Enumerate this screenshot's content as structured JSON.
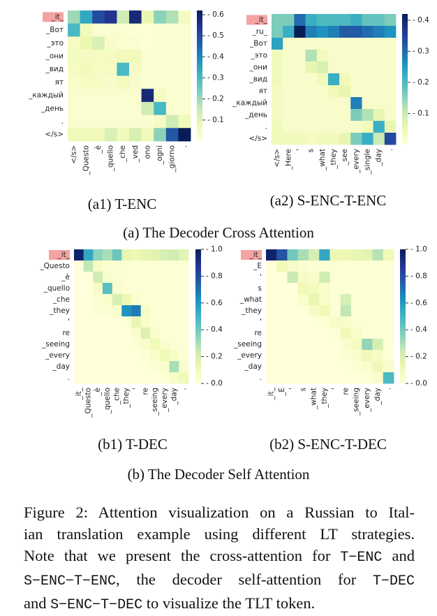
{
  "colors": {
    "cmap": [
      "#ffffd9",
      "#edf8b1",
      "#c7e9b4",
      "#7fcdbb",
      "#41b6c4",
      "#1d91c0",
      "#225ea8",
      "#253494",
      "#081d58"
    ],
    "tlt_highlight": "#f4a3a3"
  },
  "subfigures": {
    "a1": "(a1) T-ENC",
    "a2": "(a2) S-ENC-T-ENC",
    "b1": "(b1) T-DEC",
    "b2": "(b2) S-ENC-T-DEC"
  },
  "groups": {
    "a": "(a) The Decoder Cross Attention",
    "b": "(b) The Decoder Self Attention"
  },
  "caption": {
    "l1": "Figure 2: Attention visualization on a Russian to Ital-",
    "l2": "ian translation example using different LT strategies.",
    "l3a": "Note that we present the cross-attention for ",
    "l3b": "T−ENC",
    "l3c": " and",
    "l4a": "S−ENC−T−ENC",
    "l4b": ", the decoder self-attention for ",
    "l4c": "T−DEC",
    "l5a": "and ",
    "l5b": "S−ENC−T−DEC",
    "l5c": " to visualize the TLT token."
  },
  "chart_data": [
    {
      "id": "a1",
      "type": "heatmap",
      "y_labels": [
        "_it_",
        "_Вот",
        "_это",
        "_они",
        "_вид",
        "ят",
        "_каждый",
        "_день",
        ".",
        "</s>"
      ],
      "x_labels": [
        "</s>",
        "_Questo",
        "_è",
        "_quello",
        "_che",
        "_ved",
        "ono",
        "_ogni",
        "_giorno",
        "."
      ],
      "colorbar_ticks": [
        0.1,
        0.2,
        0.3,
        0.4,
        0.5,
        0.6
      ],
      "vmin": 0,
      "vmax": 0.62,
      "values": [
        [
          0.2,
          0.34,
          0.5,
          0.55,
          0.14,
          0.58,
          0.08,
          0.22,
          0.18,
          0.04
        ],
        [
          0.3,
          0.06,
          0.02,
          0.02,
          0.02,
          0.01,
          0.01,
          0.02,
          0.02,
          0.02
        ],
        [
          0.04,
          0.08,
          0.12,
          0.03,
          0.02,
          0.02,
          0.01,
          0.02,
          0.02,
          0.02
        ],
        [
          0.05,
          0.04,
          0.04,
          0.04,
          0.06,
          0.06,
          0.02,
          0.02,
          0.02,
          0.02
        ],
        [
          0.04,
          0.06,
          0.04,
          0.04,
          0.3,
          0.04,
          0.02,
          0.02,
          0.02,
          0.02
        ],
        [
          0.03,
          0.04,
          0.04,
          0.03,
          0.05,
          0.03,
          0.02,
          0.02,
          0.02,
          0.02
        ],
        [
          0.02,
          0.02,
          0.02,
          0.02,
          0.02,
          0.02,
          0.58,
          0.04,
          0.02,
          0.02
        ],
        [
          0.02,
          0.02,
          0.02,
          0.02,
          0.02,
          0.02,
          0.14,
          0.3,
          0.02,
          0.02
        ],
        [
          0.02,
          0.02,
          0.02,
          0.02,
          0.02,
          0.02,
          0.02,
          0.04,
          0.14,
          0.06
        ],
        [
          0.06,
          0.06,
          0.06,
          0.12,
          0.06,
          0.12,
          0.06,
          0.22,
          0.48,
          0.62
        ]
      ]
    },
    {
      "id": "a2",
      "type": "heatmap",
      "y_labels": [
        "_it_",
        "_ru_",
        "_Вот",
        "_это",
        "_они",
        "_вид",
        "ят",
        "_каждый",
        "_день",
        ".",
        "</s>"
      ],
      "x_labels": [
        "</s>",
        "_Here",
        "'",
        "s",
        "_what",
        "_they",
        "_see",
        "_every",
        "_single",
        "_day",
        "."
      ],
      "colorbar_ticks": [
        0.1,
        0.2,
        0.3,
        0.4
      ],
      "vmin": 0,
      "vmax": 0.42,
      "values": [
        [
          0.16,
          0.16,
          0.3,
          0.22,
          0.2,
          0.2,
          0.2,
          0.22,
          0.18,
          0.18,
          0.16
        ],
        [
          0.16,
          0.22,
          0.42,
          0.28,
          0.26,
          0.28,
          0.32,
          0.32,
          0.3,
          0.28,
          0.26
        ],
        [
          0.24,
          0.02,
          0.02,
          0.02,
          0.02,
          0.02,
          0.02,
          0.02,
          0.02,
          0.02,
          0.02
        ],
        [
          0.04,
          0.02,
          0.02,
          0.12,
          0.04,
          0.02,
          0.02,
          0.02,
          0.02,
          0.02,
          0.02
        ],
        [
          0.04,
          0.02,
          0.02,
          0.06,
          0.08,
          0.02,
          0.02,
          0.02,
          0.02,
          0.02,
          0.02
        ],
        [
          0.04,
          0.02,
          0.02,
          0.02,
          0.04,
          0.22,
          0.04,
          0.02,
          0.02,
          0.02,
          0.02
        ],
        [
          0.03,
          0.02,
          0.02,
          0.02,
          0.02,
          0.04,
          0.06,
          0.02,
          0.02,
          0.02,
          0.02
        ],
        [
          0.03,
          0.02,
          0.02,
          0.02,
          0.02,
          0.02,
          0.02,
          0.28,
          0.02,
          0.02,
          0.02
        ],
        [
          0.03,
          0.02,
          0.02,
          0.02,
          0.02,
          0.02,
          0.02,
          0.16,
          0.12,
          0.06,
          0.02
        ],
        [
          0.04,
          0.02,
          0.02,
          0.02,
          0.02,
          0.02,
          0.02,
          0.02,
          0.04,
          0.22,
          0.06
        ],
        [
          0.04,
          0.04,
          0.04,
          0.03,
          0.04,
          0.04,
          0.06,
          0.16,
          0.22,
          0.1,
          0.34
        ]
      ]
    },
    {
      "id": "b1",
      "type": "heatmap",
      "y_labels": [
        "_it_",
        "_Questo",
        "_è",
        "_quello",
        "_che",
        "_they",
        "'",
        "re",
        "_seeing",
        "_every",
        "_day",
        "."
      ],
      "x_labels": [
        "_it_",
        "_Questo",
        "_è",
        "_quello",
        "_che",
        "_they",
        "'",
        "re",
        "_seeing",
        "_every",
        "_day",
        "."
      ],
      "colorbar_ticks": [
        0.0,
        0.2,
        0.4,
        0.6,
        0.8,
        1.0
      ],
      "vmin": 0,
      "vmax": 1.0,
      "values": [
        [
          0.96,
          0.55,
          0.35,
          0.3,
          0.42,
          0.14,
          0.12,
          0.14,
          0.16,
          0.2,
          0.22,
          0.16
        ],
        [
          0.0,
          0.26,
          0.06,
          0.03,
          0.03,
          0.02,
          0.02,
          0.02,
          0.02,
          0.02,
          0.02,
          0.02
        ],
        [
          0.0,
          0.0,
          0.22,
          0.04,
          0.03,
          0.02,
          0.02,
          0.02,
          0.02,
          0.02,
          0.02,
          0.02
        ],
        [
          0.0,
          0.0,
          0.06,
          0.45,
          0.04,
          0.02,
          0.02,
          0.02,
          0.02,
          0.02,
          0.02,
          0.02
        ],
        [
          0.0,
          0.0,
          0.02,
          0.04,
          0.2,
          0.12,
          0.03,
          0.02,
          0.02,
          0.02,
          0.02,
          0.02
        ],
        [
          0.0,
          0.0,
          0.02,
          0.02,
          0.04,
          0.62,
          0.68,
          0.06,
          0.02,
          0.02,
          0.02,
          0.02
        ],
        [
          0.0,
          0.0,
          0.0,
          0.0,
          0.0,
          0.02,
          0.14,
          0.04,
          0.02,
          0.02,
          0.02,
          0.02
        ],
        [
          0.0,
          0.0,
          0.0,
          0.0,
          0.0,
          0.0,
          0.04,
          0.18,
          0.04,
          0.02,
          0.02,
          0.02
        ],
        [
          0.0,
          0.0,
          0.0,
          0.0,
          0.0,
          0.0,
          0.02,
          0.04,
          0.1,
          0.04,
          0.02,
          0.02
        ],
        [
          0.0,
          0.0,
          0.0,
          0.0,
          0.0,
          0.0,
          0.0,
          0.02,
          0.04,
          0.1,
          0.06,
          0.02
        ],
        [
          0.0,
          0.0,
          0.0,
          0.0,
          0.0,
          0.0,
          0.0,
          0.0,
          0.02,
          0.04,
          0.3,
          0.04
        ],
        [
          0.0,
          0.0,
          0.0,
          0.0,
          0.0,
          0.0,
          0.0,
          0.0,
          0.0,
          0.02,
          0.06,
          0.1
        ]
      ]
    },
    {
      "id": "b2",
      "type": "heatmap",
      "y_labels": [
        "_it_",
        "_E",
        "'",
        "s",
        "_what",
        "_they",
        "'",
        "re",
        "_seeing",
        "_every",
        "_day",
        "."
      ],
      "x_labels": [
        "_it_",
        "_E",
        "'",
        "s",
        "_what",
        "_they",
        "'",
        "re",
        "_seeing",
        "_every",
        "_day",
        "."
      ],
      "colorbar_ticks": [
        0.0,
        0.2,
        0.4,
        0.6,
        0.8,
        1.0
      ],
      "vmin": 0,
      "vmax": 1.0,
      "values": [
        [
          0.96,
          0.78,
          0.4,
          0.3,
          0.2,
          0.55,
          0.12,
          0.12,
          0.14,
          0.16,
          0.28,
          0.1
        ],
        [
          0.0,
          0.1,
          0.05,
          0.03,
          0.02,
          0.02,
          0.02,
          0.02,
          0.02,
          0.02,
          0.02,
          0.02
        ],
        [
          0.0,
          0.0,
          0.24,
          0.06,
          0.04,
          0.22,
          0.02,
          0.02,
          0.02,
          0.02,
          0.02,
          0.02
        ],
        [
          0.0,
          0.0,
          0.0,
          0.1,
          0.08,
          0.04,
          0.02,
          0.02,
          0.02,
          0.02,
          0.02,
          0.02
        ],
        [
          0.0,
          0.0,
          0.0,
          0.04,
          0.14,
          0.04,
          0.02,
          0.2,
          0.02,
          0.02,
          0.02,
          0.02
        ],
        [
          0.0,
          0.0,
          0.0,
          0.0,
          0.06,
          0.1,
          0.02,
          0.26,
          0.02,
          0.02,
          0.02,
          0.02
        ],
        [
          0.0,
          0.0,
          0.0,
          0.0,
          0.0,
          0.02,
          0.06,
          0.04,
          0.02,
          0.02,
          0.02,
          0.02
        ],
        [
          0.0,
          0.0,
          0.0,
          0.0,
          0.0,
          0.0,
          0.02,
          0.1,
          0.04,
          0.02,
          0.02,
          0.02
        ],
        [
          0.0,
          0.0,
          0.0,
          0.0,
          0.0,
          0.0,
          0.0,
          0.04,
          0.08,
          0.34,
          0.2,
          0.02
        ],
        [
          0.0,
          0.0,
          0.0,
          0.0,
          0.0,
          0.0,
          0.0,
          0.02,
          0.04,
          0.1,
          0.06,
          0.02
        ],
        [
          0.0,
          0.0,
          0.0,
          0.0,
          0.0,
          0.0,
          0.0,
          0.0,
          0.02,
          0.04,
          0.1,
          0.04
        ],
        [
          0.0,
          0.0,
          0.0,
          0.0,
          0.0,
          0.0,
          0.0,
          0.0,
          0.0,
          0.02,
          0.04,
          0.48
        ]
      ]
    }
  ]
}
